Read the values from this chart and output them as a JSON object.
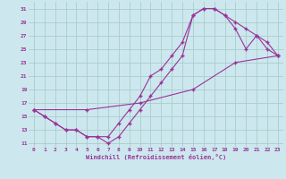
{
  "title": "",
  "xlabel": "Windchill (Refroidissement éolien,°C)",
  "bg_color": "#cce8ee",
  "grid_color": "#aacccc",
  "line_color": "#993399",
  "xlim": [
    -0.5,
    23.5
  ],
  "ylim": [
    10.5,
    32
  ],
  "xticks": [
    0,
    1,
    2,
    3,
    4,
    5,
    6,
    7,
    8,
    9,
    10,
    11,
    12,
    13,
    14,
    15,
    16,
    17,
    18,
    19,
    20,
    21,
    22,
    23
  ],
  "yticks": [
    11,
    13,
    15,
    17,
    19,
    21,
    23,
    25,
    27,
    29,
    31
  ],
  "curve_upper_x": [
    0,
    1,
    2,
    3,
    4,
    5,
    6,
    7,
    8,
    9,
    10,
    11,
    12,
    13,
    14,
    15,
    16,
    17,
    18,
    19,
    20,
    21,
    22,
    23
  ],
  "curve_upper_y": [
    16,
    15,
    14,
    13,
    13,
    12,
    12,
    12,
    14,
    16,
    18,
    21,
    22,
    24,
    26,
    30,
    31,
    31,
    30,
    29,
    28,
    27,
    26,
    24
  ],
  "curve_lower_x": [
    0,
    1,
    2,
    3,
    4,
    5,
    6,
    7,
    8,
    9,
    10,
    11,
    12,
    13,
    14,
    15,
    16,
    17,
    18,
    19,
    20,
    21,
    22,
    23
  ],
  "curve_lower_y": [
    16,
    15,
    14,
    13,
    13,
    12,
    12,
    11,
    12,
    14,
    16,
    18,
    20,
    22,
    24,
    30,
    31,
    31,
    30,
    28,
    25,
    27,
    25,
    24
  ],
  "curve_diag_x": [
    0,
    5,
    10,
    15,
    19,
    23
  ],
  "curve_diag_y": [
    16,
    16,
    17,
    19,
    23,
    24
  ]
}
